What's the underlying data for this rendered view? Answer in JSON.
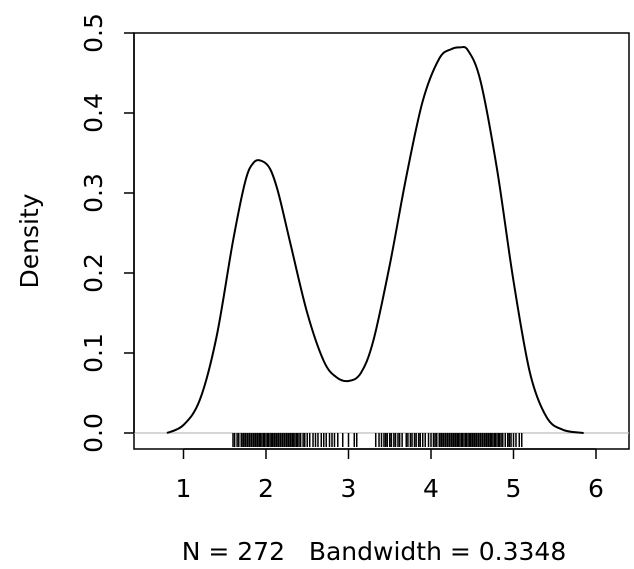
{
  "chart_data": {
    "type": "line",
    "title": "",
    "xlabel": "N = 272   Bandwidth = 0.3348",
    "ylabel": "Density",
    "xlim": [
      0.4,
      6.4
    ],
    "ylim": [
      -0.02,
      0.5
    ],
    "x_ticks": [
      1,
      2,
      3,
      4,
      5,
      6
    ],
    "x_tick_labels": [
      "1",
      "2",
      "3",
      "4",
      "5",
      "6"
    ],
    "y_ticks": [
      0.0,
      0.1,
      0.2,
      0.3,
      0.4,
      0.5
    ],
    "y_tick_labels": [
      "0.0",
      "0.1",
      "0.2",
      "0.3",
      "0.4",
      "0.5"
    ],
    "baseline": 0,
    "series": [
      {
        "x": [
          0.8,
          1.0,
          1.2,
          1.4,
          1.6,
          1.75,
          1.85,
          1.95,
          2.05,
          2.15,
          2.3,
          2.5,
          2.7,
          2.85,
          3.0,
          3.15,
          3.3,
          3.5,
          3.7,
          3.9,
          4.1,
          4.25,
          4.35,
          4.45,
          4.6,
          4.8,
          5.0,
          5.2,
          5.4,
          5.6,
          5.85
        ],
        "y": [
          0.0,
          0.01,
          0.042,
          0.12,
          0.24,
          0.315,
          0.338,
          0.34,
          0.33,
          0.3,
          0.235,
          0.15,
          0.09,
          0.07,
          0.065,
          0.075,
          0.115,
          0.21,
          0.32,
          0.415,
          0.468,
          0.48,
          0.482,
          0.478,
          0.44,
          0.33,
          0.19,
          0.075,
          0.02,
          0.004,
          0.0
        ]
      }
    ],
    "rug": [
      1.6,
      1.62,
      1.65,
      1.67,
      1.7,
      1.72,
      1.73,
      1.75,
      1.77,
      1.78,
      1.8,
      1.82,
      1.83,
      1.85,
      1.87,
      1.88,
      1.9,
      1.92,
      1.93,
      1.95,
      1.97,
      1.98,
      2.0,
      2.02,
      2.03,
      2.05,
      2.07,
      2.08,
      2.1,
      2.12,
      2.13,
      2.15,
      2.17,
      2.18,
      2.2,
      2.22,
      2.23,
      2.25,
      2.27,
      2.28,
      2.3,
      2.32,
      2.33,
      2.35,
      2.37,
      2.38,
      2.4,
      2.42,
      2.45,
      2.47,
      2.5,
      2.53,
      2.57,
      2.6,
      2.63,
      2.67,
      2.7,
      2.73,
      2.77,
      2.8,
      2.83,
      2.87,
      2.93,
      3.0,
      3.07,
      3.1,
      3.33,
      3.37,
      3.4,
      3.43,
      3.45,
      3.47,
      3.5,
      3.52,
      3.55,
      3.57,
      3.6,
      3.62,
      3.65,
      3.7,
      3.72,
      3.75,
      3.77,
      3.8,
      3.82,
      3.85,
      3.87,
      3.9,
      3.93,
      3.97,
      4.0,
      4.03,
      4.05,
      4.07,
      4.1,
      4.12,
      4.13,
      4.15,
      4.17,
      4.18,
      4.2,
      4.22,
      4.23,
      4.25,
      4.27,
      4.28,
      4.3,
      4.32,
      4.33,
      4.35,
      4.37,
      4.38,
      4.4,
      4.42,
      4.43,
      4.45,
      4.47,
      4.48,
      4.5,
      4.52,
      4.53,
      4.55,
      4.57,
      4.58,
      4.6,
      4.62,
      4.63,
      4.65,
      4.67,
      4.68,
      4.7,
      4.72,
      4.73,
      4.75,
      4.77,
      4.78,
      4.8,
      4.82,
      4.83,
      4.85,
      4.87,
      4.9,
      4.93,
      4.95,
      4.97,
      5.0,
      5.03,
      5.07,
      5.1
    ],
    "grid": false,
    "legend": "none",
    "colors": {
      "line": "#000000",
      "rug": "#000000",
      "baseline": "#bebebe"
    }
  }
}
